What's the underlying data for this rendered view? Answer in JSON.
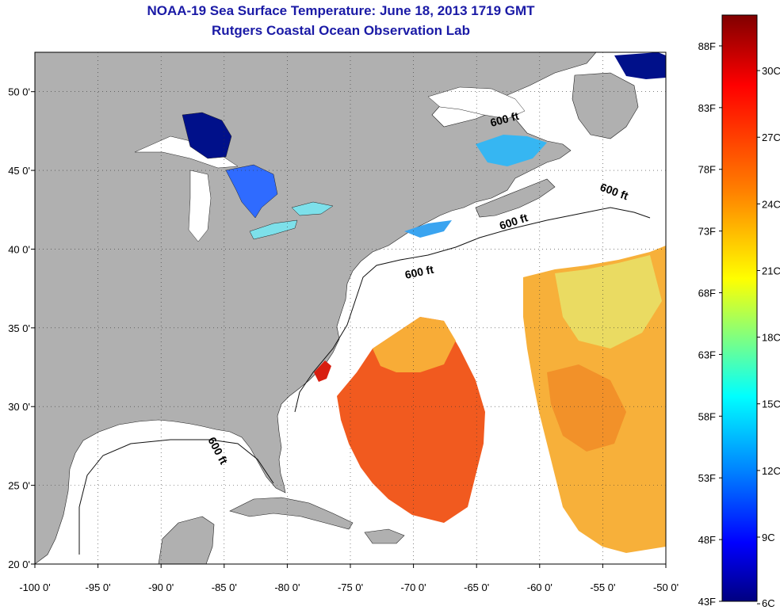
{
  "title": "NOAA-19 Sea Surface Temperature:  June 18, 2013 1719 GMT",
  "subtitle": "Rutgers Coastal Ocean Observation Lab",
  "map": {
    "lon_min": -100,
    "lon_max": -50,
    "lat_min": 20,
    "lat_max": 52.5,
    "lon_ticks": [
      "-100 0'",
      "-95 0'",
      "-90 0'",
      "-85 0'",
      "-80 0'",
      "-75 0'",
      "-70 0'",
      "-65 0'",
      "-60 0'",
      "-55 0'",
      "-50 0'"
    ],
    "lat_ticks": [
      "50 0'",
      "45 0'",
      "40 0'",
      "35 0'",
      "30 0'",
      "25 0'",
      "20 0'"
    ],
    "grid": "dotted",
    "land_color": "#b0b0b0",
    "isobath_labels": [
      "600 ft",
      "600 ft",
      "600 ft",
      "600 ft",
      "600 ft"
    ]
  },
  "colorbar": {
    "f_labels": [
      "88F",
      "83F",
      "78F",
      "73F",
      "68F",
      "63F",
      "58F",
      "53F",
      "48F",
      "43F"
    ],
    "c_labels": [
      "30C",
      "27C",
      "24C",
      "21C",
      "18C",
      "15C",
      "12C",
      "9C",
      "6C"
    ],
    "colors": [
      "#800000",
      "#ff0000",
      "#ff8000",
      "#ffff00",
      "#80ff80",
      "#00ffff",
      "#0080ff",
      "#0000ff",
      "#000080"
    ]
  }
}
